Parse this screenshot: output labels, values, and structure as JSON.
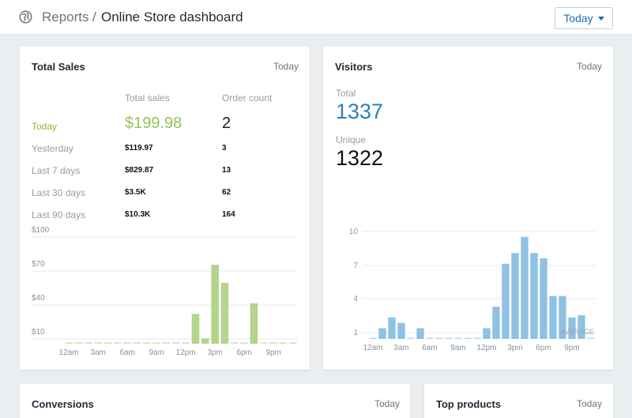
{
  "header": {
    "breadcrumb_parent": "Reports",
    "breadcrumb_separator": "/",
    "page_title": "Online Store dashboard",
    "period_button": "Today"
  },
  "total_sales": {
    "title": "Total Sales",
    "period": "Today",
    "col_sales": "Total sales",
    "col_count": "Order count",
    "rows": [
      {
        "label": "Today",
        "sales": "$199.98",
        "count": "2"
      },
      {
        "label": "Yesterday",
        "sales": "$119.97",
        "count": "3"
      },
      {
        "label": "Last 7 days",
        "sales": "$829.87",
        "count": "13"
      },
      {
        "label": "Last 30 days",
        "sales": "$3.5K",
        "count": "62"
      },
      {
        "label": "Last 90 days",
        "sales": "$10.3K",
        "count": "164"
      }
    ]
  },
  "visitors": {
    "title": "Visitors",
    "period": "Today",
    "total_label": "Total",
    "total_value": "1337",
    "unique_label": "Unique",
    "unique_value": "1322"
  },
  "conversions": {
    "title": "Conversions",
    "period": "Today"
  },
  "top_products": {
    "title": "Top products",
    "period": "Today"
  },
  "colors": {
    "sales_bar": "#b5d48c",
    "visitors_bar": "#8fc1e3",
    "accent": "#1e6fb0",
    "total_value": "#2b80b6",
    "today_green": "#95c25d"
  },
  "chart_data": [
    {
      "type": "bar",
      "x": [
        "12am",
        "1am",
        "2am",
        "3am",
        "4am",
        "5am",
        "6am",
        "7am",
        "8am",
        "9am",
        "10am",
        "11am",
        "12pm",
        "1pm",
        "2pm",
        "3pm",
        "4pm",
        "5pm",
        "6pm",
        "7pm",
        "8pm",
        "9pm",
        "10pm",
        "11pm"
      ],
      "tick_labels": [
        "12am",
        "3am",
        "6am",
        "9am",
        "12pm",
        "3pm",
        "6pm",
        "9pm"
      ],
      "values": [
        0,
        0,
        0,
        0,
        0,
        0,
        0,
        0,
        0,
        0,
        0,
        0,
        0,
        28,
        5,
        74,
        57,
        0,
        0,
        38,
        0,
        0,
        0,
        0
      ],
      "y_tick_labels": [
        "$100",
        "$70",
        "$40",
        "$10"
      ],
      "ylim": [
        0,
        100
      ],
      "grid": true
    },
    {
      "type": "bar",
      "x": [
        "12am",
        "1am",
        "2am",
        "3am",
        "4am",
        "5am",
        "6am",
        "7am",
        "8am",
        "9am",
        "10am",
        "11am",
        "12pm",
        "1pm",
        "2pm",
        "3pm",
        "4pm",
        "5pm",
        "6pm",
        "7pm",
        "8pm",
        "9pm",
        "10pm",
        "11pm"
      ],
      "tick_labels": [
        "12am",
        "3am",
        "6am",
        "9am",
        "12pm",
        "3pm",
        "6pm",
        "9pm"
      ],
      "values": [
        0,
        1,
        2,
        1.5,
        0,
        1,
        0,
        0,
        0,
        0,
        0,
        0,
        1,
        3,
        7,
        8,
        9.5,
        8,
        7.5,
        4,
        4,
        2,
        2.2,
        0
      ],
      "y_tick_labels": [
        "10",
        "7",
        "4",
        "1"
      ],
      "ylim": [
        0,
        10
      ],
      "average_label": "AVERAGE",
      "grid": true
    }
  ]
}
